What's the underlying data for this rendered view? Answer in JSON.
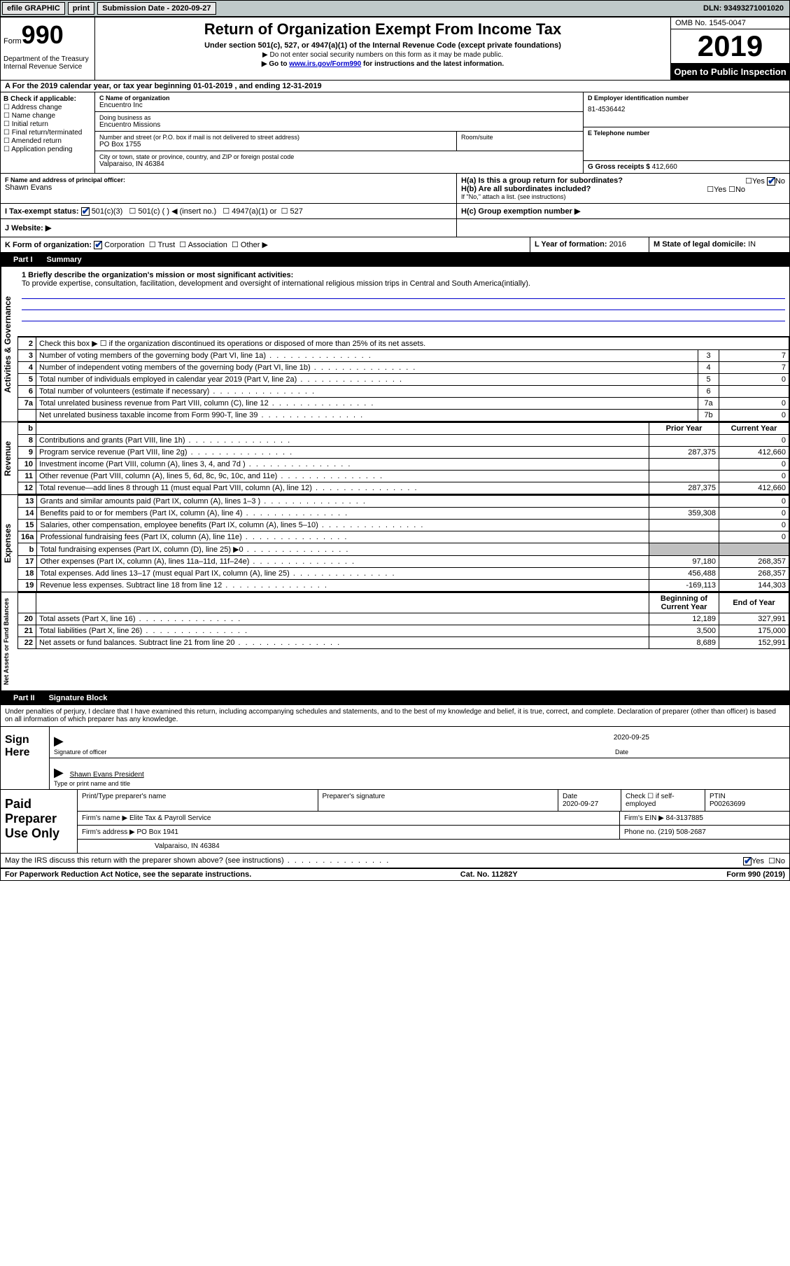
{
  "topbar": {
    "efile": "efile GRAPHIC",
    "print": "print",
    "submission": "Submission Date - 2020-09-27",
    "dln": "DLN: 93493271001020"
  },
  "header": {
    "form_label": "Form",
    "form_number": "990",
    "title": "Return of Organization Exempt From Income Tax",
    "subtitle": "Under section 501(c), 527, or 4947(a)(1) of the Internal Revenue Code (except private foundations)",
    "note1": "▶ Do not enter social security numbers on this form as it may be made public.",
    "note2_pre": "▶ Go to ",
    "note2_link": "www.irs.gov/Form990",
    "note2_post": " for instructions and the latest information.",
    "dept": "Department of the Treasury\nInternal Revenue Service",
    "omb": "OMB No. 1545-0047",
    "year": "2019",
    "open": "Open to Public Inspection"
  },
  "row_a": "A For the 2019 calendar year, or tax year beginning 01-01-2019    , and ending 12-31-2019",
  "col_b": {
    "title": "B Check if applicable:",
    "opts": [
      "Address change",
      "Name change",
      "Initial return",
      "Final return/terminated",
      "Amended return",
      "Application pending"
    ]
  },
  "col_c": {
    "name_label": "C Name of organization",
    "name": "Encuentro Inc",
    "dba_label": "Doing business as",
    "dba": "Encuentro Missions",
    "addr_label": "Number and street (or P.O. box if mail is not delivered to street address)",
    "room_label": "Room/suite",
    "addr": "PO Box 1755",
    "city_label": "City or town, state or province, country, and ZIP or foreign postal code",
    "city": "Valparaiso, IN  46384"
  },
  "col_d": {
    "label": "D Employer identification number",
    "value": "81-4536442"
  },
  "col_e": {
    "label": "E Telephone number",
    "value": ""
  },
  "col_g": {
    "label": "G Gross receipts $",
    "value": "412,660"
  },
  "row_f": {
    "label": "F  Name and address of principal officer:",
    "name": "Shawn Evans"
  },
  "h": {
    "a": "H(a)  Is this a group return for subordinates?",
    "b": "H(b)  Are all subordinates included?",
    "note": "If \"No,\" attach a list. (see instructions)",
    "c": "H(c)  Group exemption number ▶"
  },
  "row_i": {
    "label": "I  Tax-exempt status:",
    "opts": [
      "501(c)(3)",
      "501(c) (  ) ◀ (insert no.)",
      "4947(a)(1) or",
      "527"
    ]
  },
  "row_j": "J  Website: ▶",
  "row_k": {
    "label": "K Form of organization:",
    "opts": [
      "Corporation",
      "Trust",
      "Association",
      "Other ▶"
    ]
  },
  "row_l": {
    "label": "L Year of formation:",
    "value": "2016"
  },
  "row_m": {
    "label": "M State of legal domicile:",
    "value": "IN"
  },
  "part1": {
    "header": "Part I",
    "title": "Summary",
    "mission_label": "1  Briefly describe the organization's mission or most significant activities:",
    "mission": "To provide expertise, consultation, facilitation, development and oversight of international religious mission trips in Central and South America(intially).",
    "line2": "Check this box ▶ ☐  if the organization discontinued its operations or disposed of more than 25% of its net assets.",
    "labels": {
      "activities": "Activities & Governance",
      "revenue": "Revenue",
      "expenses": "Expenses",
      "net": "Net Assets or Fund Balances"
    },
    "col_headers": {
      "prior": "Prior Year",
      "current": "Current Year",
      "begin": "Beginning of Current Year",
      "end": "End of Year"
    },
    "rows_top": [
      {
        "n": "3",
        "d": "Number of voting members of the governing body (Part VI, line 1a)",
        "box": "3",
        "v": "7"
      },
      {
        "n": "4",
        "d": "Number of independent voting members of the governing body (Part VI, line 1b)",
        "box": "4",
        "v": "7"
      },
      {
        "n": "5",
        "d": "Total number of individuals employed in calendar year 2019 (Part V, line 2a)",
        "box": "5",
        "v": "0"
      },
      {
        "n": "6",
        "d": "Total number of volunteers (estimate if necessary)",
        "box": "6",
        "v": ""
      },
      {
        "n": "7a",
        "d": "Total unrelated business revenue from Part VIII, column (C), line 12",
        "box": "7a",
        "v": "0"
      },
      {
        "n": "",
        "d": "Net unrelated business taxable income from Form 990-T, line 39",
        "box": "7b",
        "v": "0"
      }
    ],
    "rows_rev": [
      {
        "n": "8",
        "d": "Contributions and grants (Part VIII, line 1h)",
        "p": "",
        "c": "0"
      },
      {
        "n": "9",
        "d": "Program service revenue (Part VIII, line 2g)",
        "p": "287,375",
        "c": "412,660"
      },
      {
        "n": "10",
        "d": "Investment income (Part VIII, column (A), lines 3, 4, and 7d )",
        "p": "",
        "c": "0"
      },
      {
        "n": "11",
        "d": "Other revenue (Part VIII, column (A), lines 5, 6d, 8c, 9c, 10c, and 11e)",
        "p": "",
        "c": "0"
      },
      {
        "n": "12",
        "d": "Total revenue—add lines 8 through 11 (must equal Part VIII, column (A), line 12)",
        "p": "287,375",
        "c": "412,660"
      }
    ],
    "rows_exp": [
      {
        "n": "13",
        "d": "Grants and similar amounts paid (Part IX, column (A), lines 1–3 )",
        "p": "",
        "c": "0"
      },
      {
        "n": "14",
        "d": "Benefits paid to or for members (Part IX, column (A), line 4)",
        "p": "359,308",
        "c": "0"
      },
      {
        "n": "15",
        "d": "Salaries, other compensation, employee benefits (Part IX, column (A), lines 5–10)",
        "p": "",
        "c": "0"
      },
      {
        "n": "16a",
        "d": "Professional fundraising fees (Part IX, column (A), line 11e)",
        "p": "",
        "c": "0"
      },
      {
        "n": "b",
        "d": "Total fundraising expenses (Part IX, column (D), line 25) ▶0",
        "p": "shaded",
        "c": "shaded"
      },
      {
        "n": "17",
        "d": "Other expenses (Part IX, column (A), lines 11a–11d, 11f–24e)",
        "p": "97,180",
        "c": "268,357"
      },
      {
        "n": "18",
        "d": "Total expenses. Add lines 13–17 (must equal Part IX, column (A), line 25)",
        "p": "456,488",
        "c": "268,357"
      },
      {
        "n": "19",
        "d": "Revenue less expenses. Subtract line 18 from line 12",
        "p": "-169,113",
        "c": "144,303"
      }
    ],
    "rows_net": [
      {
        "n": "20",
        "d": "Total assets (Part X, line 16)",
        "p": "12,189",
        "c": "327,991"
      },
      {
        "n": "21",
        "d": "Total liabilities (Part X, line 26)",
        "p": "3,500",
        "c": "175,000"
      },
      {
        "n": "22",
        "d": "Net assets or fund balances. Subtract line 21 from line 20",
        "p": "8,689",
        "c": "152,991"
      }
    ]
  },
  "part2": {
    "header": "Part II",
    "title": "Signature Block",
    "penalty": "Under penalties of perjury, I declare that I have examined this return, including accompanying schedules and statements, and to the best of my knowledge and belief, it is true, correct, and complete. Declaration of preparer (other than officer) is based on all information of which preparer has any knowledge.",
    "sign_here": "Sign Here",
    "sig_officer": "Signature of officer",
    "sig_date": "2020-09-25",
    "date_label": "Date",
    "officer_name": "Shawn Evans  President",
    "type_label": "Type or print name and title",
    "paid": "Paid Preparer Use Only",
    "prep_name_label": "Print/Type preparer's name",
    "prep_sig_label": "Preparer's signature",
    "prep_date_label": "Date",
    "prep_date": "2020-09-27",
    "check_self": "Check ☐ if self-employed",
    "ptin_label": "PTIN",
    "ptin": "P00263699",
    "firm_name_label": "Firm's name    ▶",
    "firm_name": "Elite Tax & Payroll Service",
    "firm_ein_label": "Firm's EIN ▶",
    "firm_ein": "84-3137885",
    "firm_addr_label": "Firm's address ▶",
    "firm_addr": "PO Box 1941",
    "firm_city": "Valparaiso, IN  46384",
    "phone_label": "Phone no.",
    "phone": "(219) 508-2687",
    "discuss": "May the IRS discuss this return with the preparer shown above? (see instructions)"
  },
  "footer": {
    "left": "For Paperwork Reduction Act Notice, see the separate instructions.",
    "center": "Cat. No. 11282Y",
    "right": "Form 990 (2019)"
  }
}
